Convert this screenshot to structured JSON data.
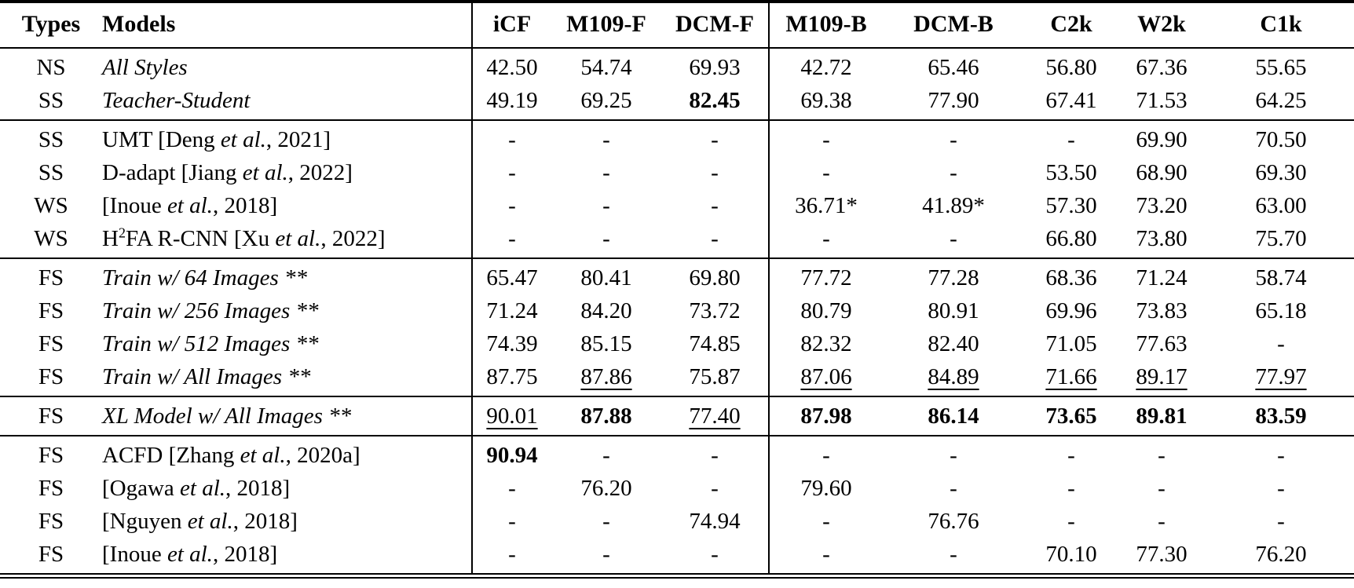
{
  "page": {
    "background": "#ffffff",
    "text_color": "#000000"
  },
  "table": {
    "header": {
      "types": "Types",
      "models": "Models",
      "icf": "iCF",
      "m109f": "M109-F",
      "dcmf": "DCM-F",
      "m109b": "M109-B",
      "dcmb": "DCM-B",
      "c2k": "C2k",
      "w2k": "W2k",
      "c1k": "C1k"
    },
    "sections": [
      {
        "rows": [
          {
            "type": "NS",
            "model": [
              {
                "t": "All Styles",
                "i": 1
              }
            ],
            "cells": [
              "42.50",
              "54.74",
              "69.93",
              "42.72",
              "65.46",
              "56.80",
              "67.36",
              "55.65"
            ]
          },
          {
            "type": "SS",
            "model": [
              {
                "t": "Teacher-Student",
                "i": 1
              }
            ],
            "cells": [
              "49.19",
              "69.25",
              {
                "t": "82.45",
                "b": 1
              },
              "69.38",
              "77.90",
              "67.41",
              "71.53",
              "64.25"
            ]
          }
        ]
      },
      {
        "rows": [
          {
            "type": "SS",
            "model": [
              {
                "t": "UMT [Deng "
              },
              {
                "t": "et al.",
                "i": 1
              },
              {
                "t": ", 2021]"
              }
            ],
            "cells": [
              "-",
              "-",
              "-",
              "-",
              "-",
              "-",
              "69.90",
              "70.50"
            ]
          },
          {
            "type": "SS",
            "model": [
              {
                "t": "D-adapt [Jiang "
              },
              {
                "t": "et al.",
                "i": 1
              },
              {
                "t": ", 2022]"
              }
            ],
            "cells": [
              "-",
              "-",
              "-",
              "-",
              "-",
              "53.50",
              "68.90",
              "69.30"
            ]
          },
          {
            "type": "WS",
            "model": [
              {
                "t": "[Inoue "
              },
              {
                "t": "et al.",
                "i": 1
              },
              {
                "t": ", 2018]"
              }
            ],
            "cells": [
              "-",
              "-",
              "-",
              "36.71*",
              "41.89*",
              "57.30",
              "73.20",
              "63.00"
            ]
          },
          {
            "type": "WS",
            "model": [
              {
                "t": "H"
              },
              {
                "t": "2",
                "sup": 1
              },
              {
                "t": "FA R-CNN [Xu "
              },
              {
                "t": "et al.",
                "i": 1
              },
              {
                "t": ", 2022]"
              }
            ],
            "cells": [
              "-",
              "-",
              "-",
              "-",
              "-",
              "66.80",
              "73.80",
              "75.70"
            ]
          }
        ]
      },
      {
        "rows": [
          {
            "type": "FS",
            "model": [
              {
                "t": "Train w/ 64 Images **",
                "i": 1
              }
            ],
            "cells": [
              "65.47",
              "80.41",
              "69.80",
              "77.72",
              "77.28",
              "68.36",
              "71.24",
              "58.74"
            ]
          },
          {
            "type": "FS",
            "model": [
              {
                "t": "Train w/ 256 Images **",
                "i": 1
              }
            ],
            "cells": [
              "71.24",
              "84.20",
              "73.72",
              "80.79",
              "80.91",
              "69.96",
              "73.83",
              "65.18"
            ]
          },
          {
            "type": "FS",
            "model": [
              {
                "t": "Train w/ 512 Images **",
                "i": 1
              }
            ],
            "cells": [
              "74.39",
              "85.15",
              "74.85",
              "82.32",
              "82.40",
              "71.05",
              "77.63",
              "-"
            ]
          },
          {
            "type": "FS",
            "model": [
              {
                "t": "Train w/ All Images **",
                "i": 1
              }
            ],
            "cells": [
              "87.75",
              {
                "t": "87.86",
                "u": 1
              },
              "75.87",
              {
                "t": "87.06",
                "u": 1
              },
              {
                "t": "84.89",
                "u": 1
              },
              {
                "t": "71.66",
                "u": 1
              },
              {
                "t": "89.17",
                "u": 1
              },
              {
                "t": "77.97",
                "u": 1
              }
            ]
          }
        ]
      },
      {
        "rows": [
          {
            "type": "FS",
            "model": [
              {
                "t": "XL Model w/ All Images **",
                "i": 1
              }
            ],
            "cells": [
              {
                "t": "90.01",
                "u": 1
              },
              {
                "t": "87.88",
                "b": 1
              },
              {
                "t": "77.40",
                "u": 1
              },
              {
                "t": "87.98",
                "b": 1
              },
              {
                "t": "86.14",
                "b": 1
              },
              {
                "t": "73.65",
                "b": 1
              },
              {
                "t": "89.81",
                "b": 1
              },
              {
                "t": "83.59",
                "b": 1
              }
            ]
          }
        ]
      },
      {
        "rows": [
          {
            "type": "FS",
            "model": [
              {
                "t": "ACFD [Zhang "
              },
              {
                "t": "et al.",
                "i": 1
              },
              {
                "t": ", 2020a]"
              }
            ],
            "cells": [
              {
                "t": "90.94",
                "b": 1
              },
              "-",
              "-",
              "-",
              "-",
              "-",
              "-",
              "-"
            ]
          },
          {
            "type": "FS",
            "model": [
              {
                "t": "[Ogawa "
              },
              {
                "t": "et al.",
                "i": 1
              },
              {
                "t": ", 2018]"
              }
            ],
            "cells": [
              "-",
              "76.20",
              "-",
              "79.60",
              "-",
              "-",
              "-",
              "-"
            ]
          },
          {
            "type": "FS",
            "model": [
              {
                "t": "[Nguyen "
              },
              {
                "t": "et al.",
                "i": 1
              },
              {
                "t": ", 2018]"
              }
            ],
            "cells": [
              "-",
              "-",
              "74.94",
              "-",
              "76.76",
              "-",
              "-",
              "-"
            ]
          },
          {
            "type": "FS",
            "model": [
              {
                "t": "[Inoue "
              },
              {
                "t": "et al.",
                "i": 1
              },
              {
                "t": ", 2018]"
              }
            ],
            "cells": [
              "-",
              "-",
              "-",
              "-",
              "-",
              "70.10",
              "77.30",
              "76.20"
            ]
          }
        ]
      }
    ]
  }
}
